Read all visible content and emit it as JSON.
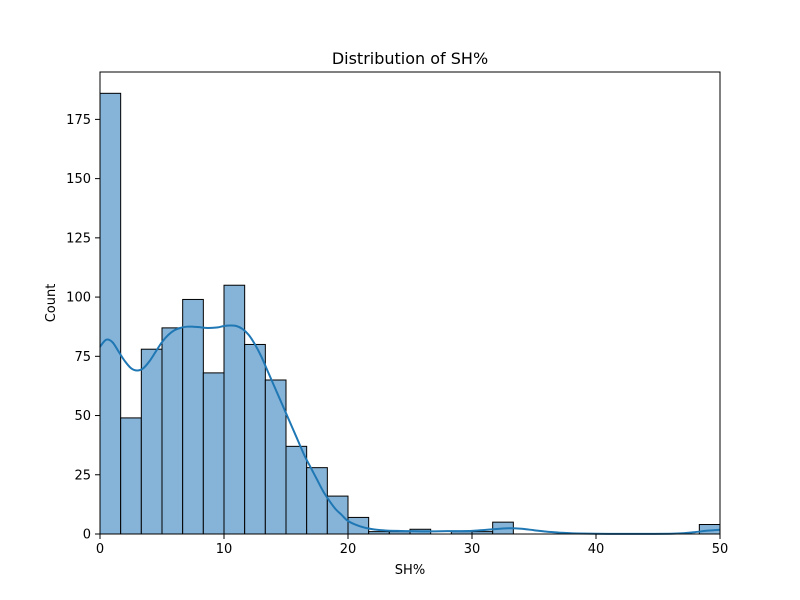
{
  "chart_data": {
    "type": "bar",
    "title": "Distribution of SH%",
    "xlabel": "SH%",
    "ylabel": "Count",
    "xlim": [
      0,
      50
    ],
    "ylim": [
      0,
      195
    ],
    "xticks": [
      0,
      10,
      20,
      30,
      40,
      50
    ],
    "yticks": [
      0,
      25,
      50,
      75,
      100,
      125,
      150,
      175
    ],
    "grid": false,
    "bin_width": 1.6667,
    "bins": [
      {
        "x0": 0.0,
        "x1": 1.6667,
        "count": 186
      },
      {
        "x0": 1.6667,
        "x1": 3.3333,
        "count": 49
      },
      {
        "x0": 3.3333,
        "x1": 5.0,
        "count": 78
      },
      {
        "x0": 5.0,
        "x1": 6.6667,
        "count": 87
      },
      {
        "x0": 6.6667,
        "x1": 8.3333,
        "count": 99
      },
      {
        "x0": 8.3333,
        "x1": 10.0,
        "count": 68
      },
      {
        "x0": 10.0,
        "x1": 11.6667,
        "count": 105
      },
      {
        "x0": 11.6667,
        "x1": 13.3333,
        "count": 80
      },
      {
        "x0": 13.3333,
        "x1": 15.0,
        "count": 65
      },
      {
        "x0": 15.0,
        "x1": 16.6667,
        "count": 37
      },
      {
        "x0": 16.6667,
        "x1": 18.3333,
        "count": 28
      },
      {
        "x0": 18.3333,
        "x1": 20.0,
        "count": 16
      },
      {
        "x0": 20.0,
        "x1": 21.6667,
        "count": 7
      },
      {
        "x0": 21.6667,
        "x1": 23.3333,
        "count": 1
      },
      {
        "x0": 23.3333,
        "x1": 25.0,
        "count": 1
      },
      {
        "x0": 25.0,
        "x1": 26.6667,
        "count": 2
      },
      {
        "x0": 26.6667,
        "x1": 28.3333,
        "count": 0
      },
      {
        "x0": 28.3333,
        "x1": 30.0,
        "count": 1
      },
      {
        "x0": 30.0,
        "x1": 31.6667,
        "count": 1
      },
      {
        "x0": 31.6667,
        "x1": 33.3333,
        "count": 5
      },
      {
        "x0": 33.3333,
        "x1": 35.0,
        "count": 0
      },
      {
        "x0": 35.0,
        "x1": 36.6667,
        "count": 0
      },
      {
        "x0": 36.6667,
        "x1": 38.3333,
        "count": 0
      },
      {
        "x0": 38.3333,
        "x1": 40.0,
        "count": 0
      },
      {
        "x0": 40.0,
        "x1": 41.6667,
        "count": 0
      },
      {
        "x0": 41.6667,
        "x1": 43.3333,
        "count": 0
      },
      {
        "x0": 43.3333,
        "x1": 45.0,
        "count": 0
      },
      {
        "x0": 45.0,
        "x1": 46.6667,
        "count": 0
      },
      {
        "x0": 46.6667,
        "x1": 48.3333,
        "count": 0
      },
      {
        "x0": 48.3333,
        "x1": 50.0,
        "count": 4
      }
    ],
    "kde": {
      "x": [
        0,
        0.5,
        1,
        1.5,
        2,
        2.5,
        3,
        3.5,
        4,
        4.5,
        5,
        5.5,
        6,
        6.5,
        7,
        7.5,
        8,
        8.5,
        9,
        9.5,
        10,
        10.5,
        11,
        11.5,
        12,
        12.5,
        13,
        13.5,
        14,
        14.5,
        15,
        15.5,
        16,
        16.5,
        17,
        17.5,
        18,
        18.5,
        19,
        19.5,
        20,
        21,
        22,
        23,
        24,
        25,
        26,
        27,
        28,
        29,
        30,
        31,
        32,
        33,
        34,
        35,
        36,
        37,
        38,
        40,
        42,
        44,
        46,
        47,
        48,
        49,
        50
      ],
      "y": [
        79,
        82,
        81,
        77,
        73,
        70,
        69,
        70,
        73,
        77,
        81,
        84,
        86,
        87,
        87.5,
        87.5,
        87.3,
        87,
        87,
        87.2,
        87.8,
        88,
        87.8,
        86.5,
        84,
        80,
        75,
        69,
        63,
        57,
        51,
        45,
        39,
        33,
        28,
        23,
        18,
        14,
        10.5,
        8,
        5.5,
        3.2,
        2,
        1.5,
        1.3,
        1.2,
        1.1,
        1.1,
        1.2,
        1.2,
        1.3,
        1.7,
        2.1,
        2.4,
        2.2,
        1.6,
        1,
        0.6,
        0.3,
        0.1,
        0.05,
        0.05,
        0.1,
        0.3,
        0.8,
        1.4,
        1.8
      ]
    },
    "colors": {
      "bar_fill": "#86b4d9",
      "bar_edge": "#000000",
      "kde_line": "#1f77b4"
    }
  }
}
